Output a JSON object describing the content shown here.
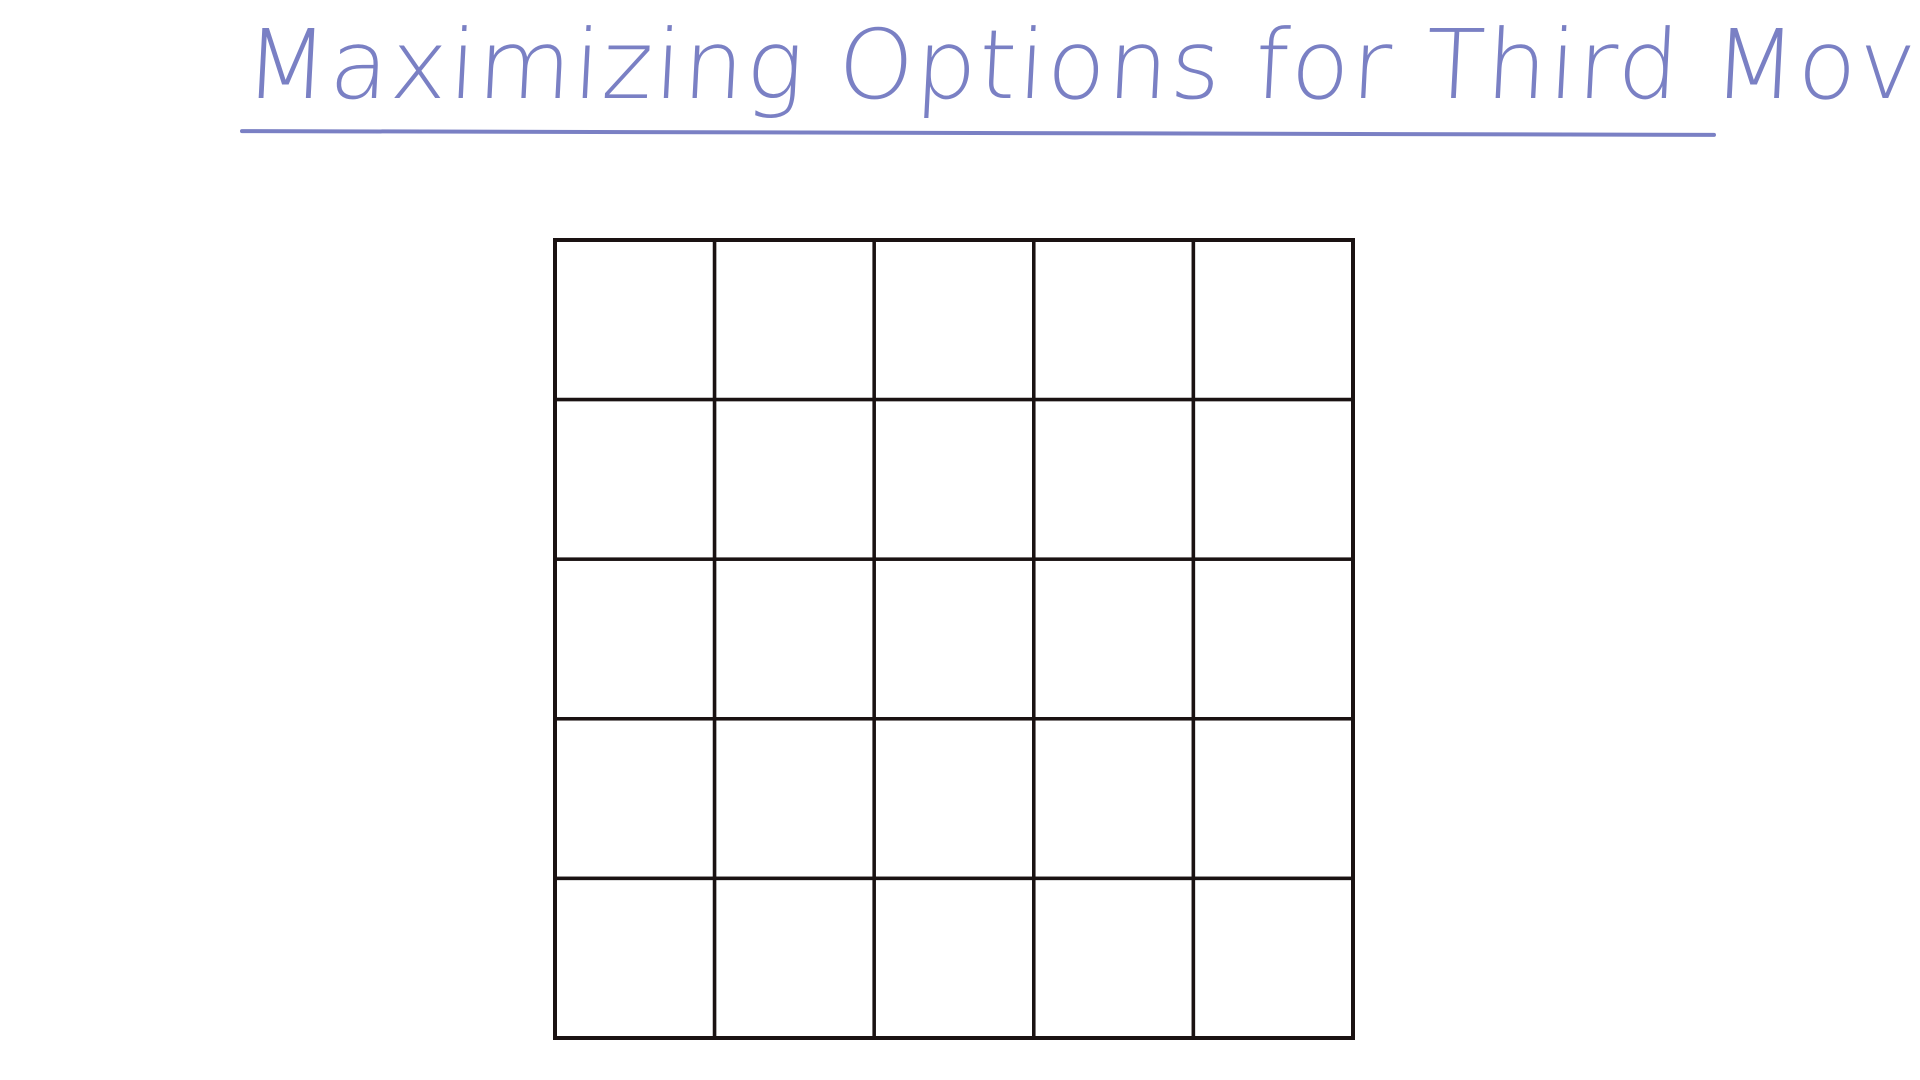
{
  "slide": {
    "title": "Maximizing Options for Third Move"
  },
  "board": {
    "rows": 5,
    "columns": 5,
    "line_color": "#1a1212"
  },
  "colors": {
    "background": "#ffffff",
    "title_ink": "#7a80c4"
  }
}
